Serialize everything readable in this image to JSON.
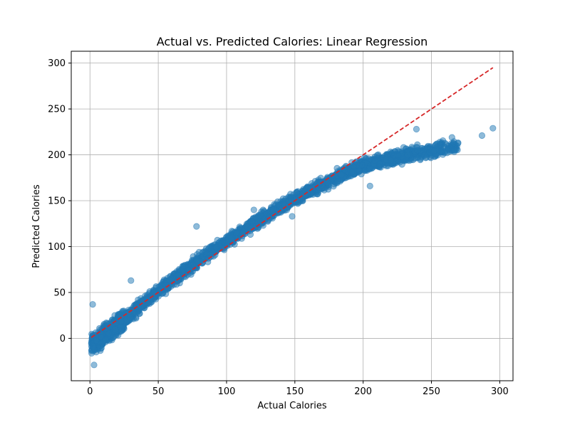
{
  "chart_data": {
    "type": "scatter",
    "title": "Actual vs. Predicted Calories: Linear Regression",
    "xlabel": "Actual Calories",
    "ylabel": "Predicted Calories",
    "xlim": [
      -13.7,
      309.7
    ],
    "ylim": [
      -46.2,
      312.9
    ],
    "xticks": [
      0,
      50,
      100,
      150,
      200,
      250,
      300
    ],
    "yticks": [
      0,
      50,
      100,
      150,
      200,
      250,
      300
    ],
    "grid": true,
    "legend": "none",
    "colors": {
      "points": "#1f77b4",
      "reference_line": "#d62728",
      "grid": "#b0b0b0"
    },
    "series": [
      {
        "kind": "points",
        "trend": {
          "x": [
            1,
            5,
            10,
            15,
            20,
            30,
            40,
            50,
            60,
            75,
            90,
            100,
            120,
            140,
            150,
            160,
            175,
            190,
            200,
            215,
            230,
            245,
            260,
            270,
            287,
            295
          ],
          "y": [
            -8,
            -3,
            3,
            9,
            15,
            27,
            39,
            51,
            63,
            80,
            96,
            106,
            125,
            143,
            152,
            160,
            171,
            182,
            188,
            194,
            199,
            203,
            207,
            209,
            212,
            215
          ]
        },
        "spread": 7,
        "count": 2600,
        "outliers": [
          {
            "x": 295,
            "y": 229
          },
          {
            "x": 287,
            "y": 221
          },
          {
            "x": 239,
            "y": 228
          },
          {
            "x": 265,
            "y": 219
          },
          {
            "x": 267,
            "y": 205
          },
          {
            "x": 3,
            "y": -29
          },
          {
            "x": 30,
            "y": 63
          },
          {
            "x": 2,
            "y": 37
          },
          {
            "x": 78,
            "y": 122
          },
          {
            "x": 120,
            "y": 140
          },
          {
            "x": 148,
            "y": 133
          },
          {
            "x": 205,
            "y": 166
          }
        ]
      },
      {
        "kind": "line",
        "style": "dashed",
        "x": [
          1,
          295
        ],
        "y": [
          1,
          295
        ]
      }
    ]
  }
}
